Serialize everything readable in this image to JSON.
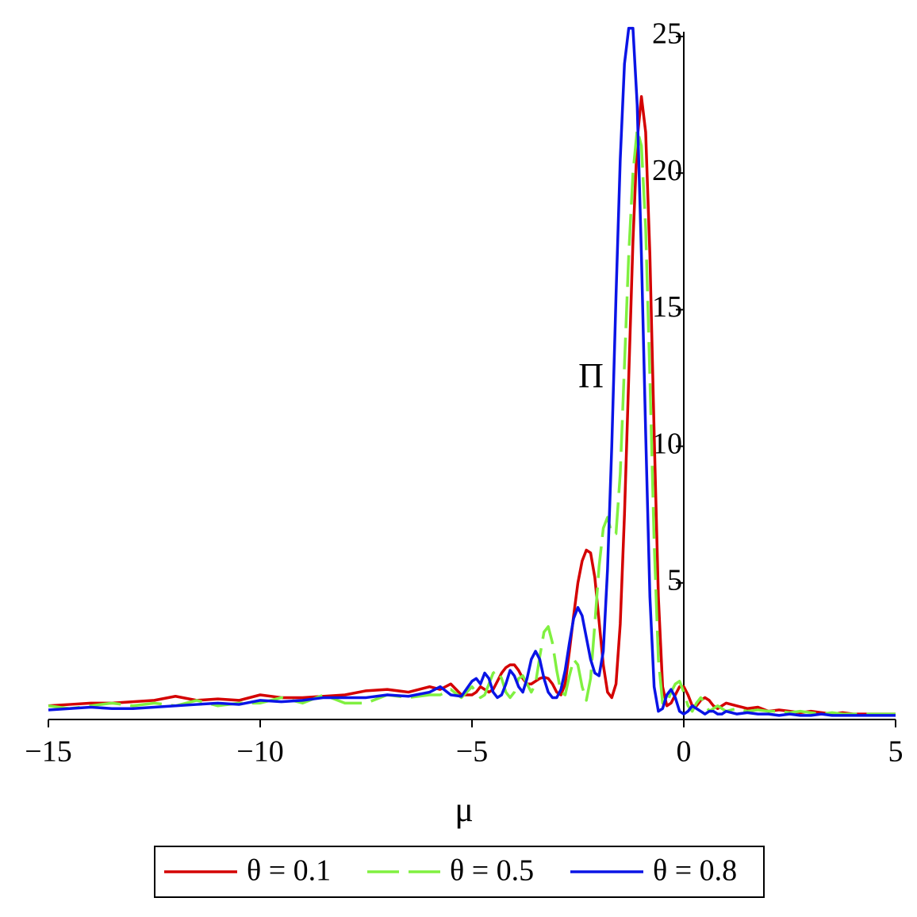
{
  "chart_data": {
    "type": "line",
    "x_label": "μ",
    "y_label": "Π",
    "xlim": [
      -15,
      5
    ],
    "ylim": [
      0,
      25
    ],
    "xticks": [
      {
        "value": -15,
        "label": "−15"
      },
      {
        "value": -10,
        "label": "−10"
      },
      {
        "value": -5,
        "label": "−5"
      },
      0,
      5
    ],
    "yticks": [
      5,
      10,
      15,
      20,
      25
    ],
    "legend": "bottom",
    "x": [
      -15,
      -14.5,
      -14,
      -13.5,
      -13,
      -12.5,
      -12,
      -11.5,
      -11,
      -10.5,
      -10,
      -9.5,
      -9,
      -8.5,
      -8,
      -7.5,
      -7,
      -6.5,
      -6,
      -5.75,
      -5.5,
      -5.25,
      -5.0,
      -4.9,
      -4.8,
      -4.7,
      -4.6,
      -4.5,
      -4.4,
      -4.3,
      -4.2,
      -4.1,
      -4.0,
      -3.9,
      -3.8,
      -3.7,
      -3.6,
      -3.5,
      -3.4,
      -3.3,
      -3.2,
      -3.1,
      -3.0,
      -2.9,
      -2.8,
      -2.7,
      -2.6,
      -2.5,
      -2.4,
      -2.3,
      -2.2,
      -2.1,
      -2.0,
      -1.9,
      -1.8,
      -1.7,
      -1.6,
      -1.5,
      -1.4,
      -1.3,
      -1.2,
      -1.1,
      -1.0,
      -0.9,
      -0.8,
      -0.7,
      -0.6,
      -0.5,
      -0.4,
      -0.3,
      -0.2,
      -0.1,
      0.0,
      0.1,
      0.2,
      0.3,
      0.4,
      0.5,
      0.6,
      0.7,
      0.8,
      0.9,
      1.0,
      1.25,
      1.5,
      1.75,
      2.0,
      2.25,
      2.5,
      2.75,
      3.0,
      3.25,
      3.5,
      3.75,
      4.0,
      4.25,
      4.5,
      4.75,
      5.0
    ],
    "series": [
      {
        "name": "θ = 0.1",
        "color": "#d40000",
        "dash": false,
        "values": [
          0.5,
          0.55,
          0.6,
          0.6,
          0.65,
          0.7,
          0.85,
          0.7,
          0.75,
          0.7,
          0.9,
          0.8,
          0.8,
          0.85,
          0.9,
          1.05,
          1.1,
          1.0,
          1.2,
          1.1,
          1.3,
          0.9,
          0.9,
          1.0,
          1.2,
          1.1,
          1.0,
          1.1,
          1.4,
          1.7,
          1.9,
          2.0,
          2.0,
          1.8,
          1.5,
          1.3,
          1.3,
          1.4,
          1.5,
          1.55,
          1.5,
          1.3,
          1.0,
          0.9,
          1.3,
          2.5,
          3.8,
          5.0,
          5.8,
          6.2,
          6.1,
          5.2,
          3.6,
          2.0,
          1.0,
          0.8,
          1.3,
          3.5,
          7.5,
          12.5,
          17.5,
          21.2,
          22.8,
          21.5,
          17.0,
          10.5,
          4.5,
          1.2,
          0.5,
          0.6,
          0.9,
          1.2,
          1.2,
          0.9,
          0.5,
          0.5,
          0.7,
          0.8,
          0.7,
          0.5,
          0.4,
          0.5,
          0.6,
          0.5,
          0.4,
          0.45,
          0.3,
          0.35,
          0.3,
          0.25,
          0.3,
          0.25,
          0.2,
          0.25,
          0.2,
          0.2,
          0.2,
          0.2,
          0.2
        ]
      },
      {
        "name": "θ = 0.5",
        "color": "#80f040",
        "dash": true,
        "values": [
          0.5,
          0.4,
          0.5,
          0.6,
          0.5,
          0.6,
          0.5,
          0.7,
          0.5,
          0.6,
          0.6,
          0.8,
          0.6,
          0.9,
          0.6,
          0.6,
          0.9,
          0.8,
          0.9,
          0.9,
          1.1,
          0.8,
          1.2,
          1.0,
          0.8,
          0.9,
          1.3,
          1.7,
          1.8,
          1.5,
          1.0,
          0.8,
          1.0,
          1.5,
          1.6,
          1.3,
          1.0,
          1.3,
          2.3,
          3.2,
          3.4,
          2.8,
          1.8,
          1.0,
          0.9,
          1.6,
          2.2,
          2.0,
          1.2,
          0.7,
          1.5,
          3.5,
          5.6,
          7.0,
          7.4,
          6.8,
          6.8,
          9.0,
          13.0,
          17.0,
          20.0,
          21.6,
          21.0,
          18.0,
          12.5,
          6.5,
          2.2,
          0.6,
          0.6,
          1.0,
          1.3,
          1.4,
          1.0,
          0.5,
          0.3,
          0.6,
          0.8,
          0.6,
          0.3,
          0.4,
          0.5,
          0.4,
          0.3,
          0.4,
          0.3,
          0.35,
          0.3,
          0.3,
          0.25,
          0.3,
          0.25,
          0.2,
          0.25,
          0.2,
          0.2,
          0.2,
          0.2,
          0.2,
          0.2
        ]
      },
      {
        "name": "θ = 0.8",
        "color": "#0a14e6",
        "dash": false,
        "values": [
          0.35,
          0.4,
          0.45,
          0.4,
          0.4,
          0.45,
          0.5,
          0.55,
          0.6,
          0.55,
          0.7,
          0.65,
          0.7,
          0.8,
          0.8,
          0.8,
          0.9,
          0.85,
          1.0,
          1.2,
          0.9,
          0.85,
          1.4,
          1.5,
          1.3,
          1.7,
          1.5,
          1.0,
          0.8,
          0.9,
          1.3,
          1.8,
          1.6,
          1.2,
          1.0,
          1.5,
          2.2,
          2.5,
          2.2,
          1.5,
          1.0,
          0.8,
          0.8,
          1.1,
          1.8,
          2.8,
          3.7,
          4.1,
          3.8,
          3.0,
          2.2,
          1.7,
          1.6,
          2.5,
          5.5,
          10.0,
          15.5,
          20.5,
          24.0,
          25.3,
          25.3,
          22.5,
          17.0,
          10.5,
          4.5,
          1.2,
          0.3,
          0.4,
          0.9,
          1.1,
          0.8,
          0.3,
          0.2,
          0.3,
          0.5,
          0.4,
          0.3,
          0.2,
          0.3,
          0.3,
          0.2,
          0.2,
          0.3,
          0.2,
          0.25,
          0.2,
          0.2,
          0.15,
          0.2,
          0.15,
          0.15,
          0.2,
          0.15,
          0.15,
          0.15,
          0.15,
          0.15,
          0.15,
          0.15
        ]
      }
    ]
  }
}
